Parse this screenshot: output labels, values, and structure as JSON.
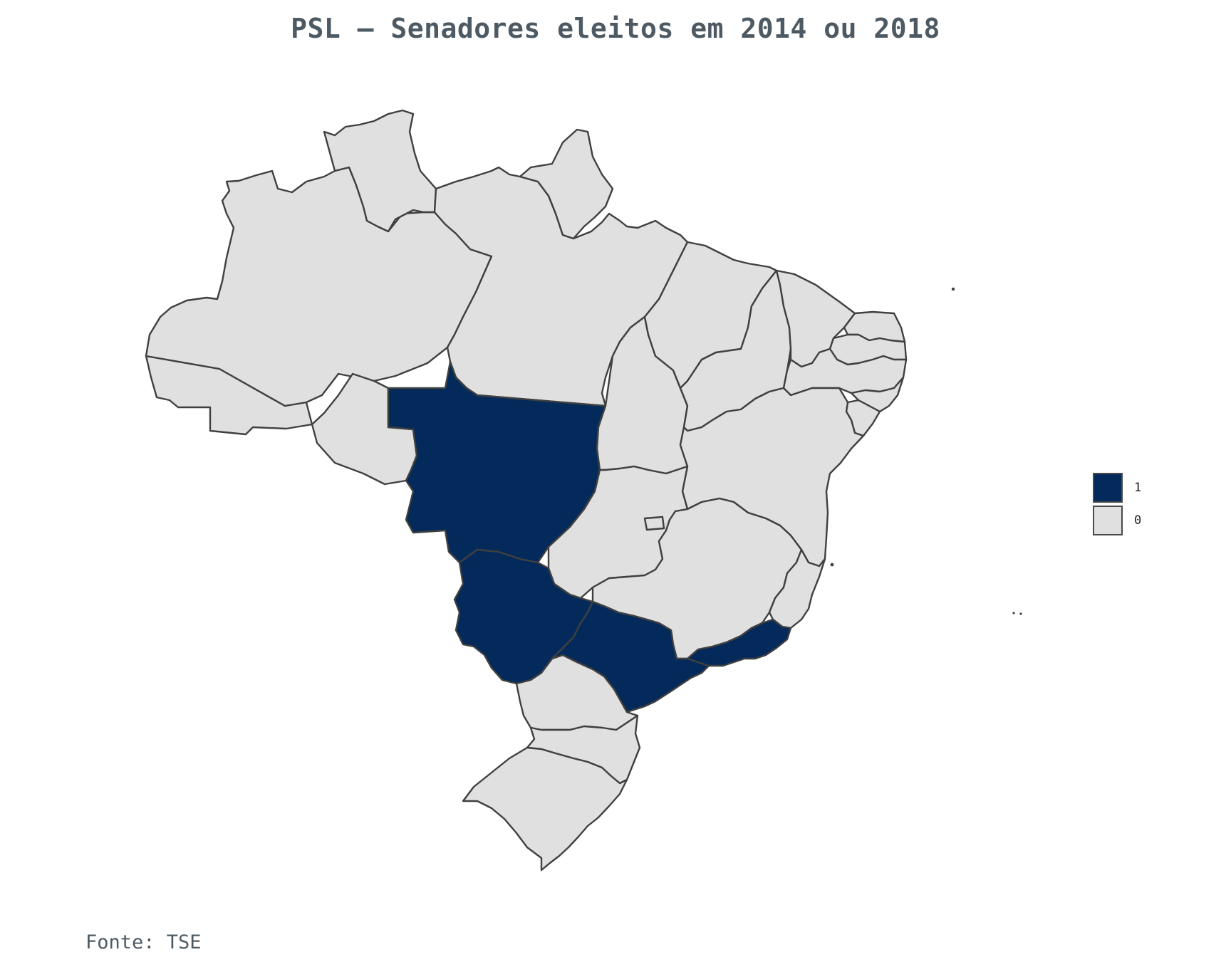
{
  "title": "PSL – Senadores eleitos em 2014 ou 2018",
  "source": "Fonte: TSE",
  "colors": {
    "elected": "#032a5a",
    "not_elected": "#e0e0e0",
    "border": "#404040"
  },
  "legend": [
    {
      "label": "1",
      "value": 1
    },
    {
      "label": "0",
      "value": 0
    }
  ],
  "map_data": {
    "type": "choropleth",
    "regions": [
      {
        "state": "AC",
        "value": 0
      },
      {
        "state": "AM",
        "value": 0
      },
      {
        "state": "RR",
        "value": 0
      },
      {
        "state": "PA",
        "value": 0
      },
      {
        "state": "AP",
        "value": 0
      },
      {
        "state": "RO",
        "value": 0
      },
      {
        "state": "MT",
        "value": 1
      },
      {
        "state": "TO",
        "value": 0
      },
      {
        "state": "MA",
        "value": 0
      },
      {
        "state": "PI",
        "value": 0
      },
      {
        "state": "CE",
        "value": 0
      },
      {
        "state": "RN",
        "value": 0
      },
      {
        "state": "PB",
        "value": 0
      },
      {
        "state": "PE",
        "value": 0
      },
      {
        "state": "AL",
        "value": 0
      },
      {
        "state": "SE",
        "value": 0
      },
      {
        "state": "BA",
        "value": 0
      },
      {
        "state": "GO",
        "value": 0
      },
      {
        "state": "DF",
        "value": 0
      },
      {
        "state": "MG",
        "value": 0
      },
      {
        "state": "ES",
        "value": 0
      },
      {
        "state": "MS",
        "value": 1
      },
      {
        "state": "SP",
        "value": 1
      },
      {
        "state": "RJ",
        "value": 1
      },
      {
        "state": "PR",
        "value": 0
      },
      {
        "state": "SC",
        "value": 0
      },
      {
        "state": "RS",
        "value": 0
      }
    ]
  }
}
